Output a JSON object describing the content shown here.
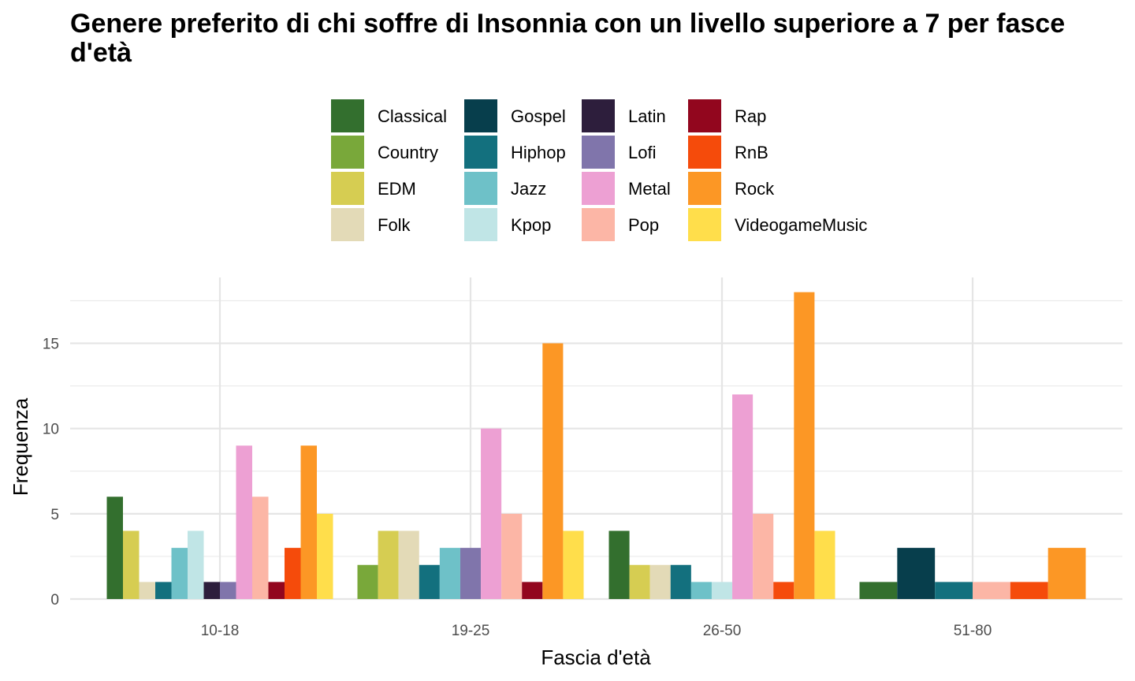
{
  "chart_data": {
    "type": "bar",
    "title": "Genere preferito di chi soffre di Insonnia con un livello superiore a 7 per fasce d'età",
    "xlabel": "Fascia d'età",
    "ylabel": "Frequenza",
    "categories": [
      "10-18",
      "19-25",
      "26-50",
      "51-80"
    ],
    "ylim": [
      0,
      19
    ],
    "yticks": [
      0,
      5,
      10,
      15
    ],
    "grid": true,
    "legend_position": "top",
    "genres": [
      {
        "name": "Classical",
        "color": "#336F2E"
      },
      {
        "name": "Country",
        "color": "#79A83A"
      },
      {
        "name": "EDM",
        "color": "#D6CD52"
      },
      {
        "name": "Folk",
        "color": "#E3DAB7"
      },
      {
        "name": "Gospel",
        "color": "#073E4C"
      },
      {
        "name": "Hiphop",
        "color": "#13707E"
      },
      {
        "name": "Jazz",
        "color": "#6EC1C8"
      },
      {
        "name": "Kpop",
        "color": "#C0E5E6"
      },
      {
        "name": "Latin",
        "color": "#2D1E3C"
      },
      {
        "name": "Lofi",
        "color": "#8075AB"
      },
      {
        "name": "Metal",
        "color": "#EDA0D3"
      },
      {
        "name": "Pop",
        "color": "#FCB6A6"
      },
      {
        "name": "Rap",
        "color": "#92061E"
      },
      {
        "name": "RnB",
        "color": "#F54B0B"
      },
      {
        "name": "Rock",
        "color": "#FC9725"
      },
      {
        "name": "VideogameMusic",
        "color": "#FFDE4B"
      }
    ],
    "groups": [
      {
        "category": "10-18",
        "bars": [
          {
            "genre": "Classical",
            "value": 6
          },
          {
            "genre": "EDM",
            "value": 4
          },
          {
            "genre": "Folk",
            "value": 1
          },
          {
            "genre": "Hiphop",
            "value": 1
          },
          {
            "genre": "Jazz",
            "value": 3
          },
          {
            "genre": "Kpop",
            "value": 4
          },
          {
            "genre": "Latin",
            "value": 1
          },
          {
            "genre": "Lofi",
            "value": 1
          },
          {
            "genre": "Metal",
            "value": 9
          },
          {
            "genre": "Pop",
            "value": 6
          },
          {
            "genre": "Rap",
            "value": 1
          },
          {
            "genre": "RnB",
            "value": 3
          },
          {
            "genre": "Rock",
            "value": 9
          },
          {
            "genre": "VideogameMusic",
            "value": 5
          }
        ]
      },
      {
        "category": "19-25",
        "bars": [
          {
            "genre": "Country",
            "value": 2
          },
          {
            "genre": "EDM",
            "value": 4
          },
          {
            "genre": "Folk",
            "value": 4
          },
          {
            "genre": "Hiphop",
            "value": 2
          },
          {
            "genre": "Jazz",
            "value": 3
          },
          {
            "genre": "Lofi",
            "value": 3
          },
          {
            "genre": "Metal",
            "value": 10
          },
          {
            "genre": "Pop",
            "value": 5
          },
          {
            "genre": "Rap",
            "value": 1
          },
          {
            "genre": "Rock",
            "value": 15
          },
          {
            "genre": "VideogameMusic",
            "value": 4
          }
        ]
      },
      {
        "category": "26-50",
        "bars": [
          {
            "genre": "Classical",
            "value": 4
          },
          {
            "genre": "EDM",
            "value": 2
          },
          {
            "genre": "Folk",
            "value": 2
          },
          {
            "genre": "Hiphop",
            "value": 2
          },
          {
            "genre": "Jazz",
            "value": 1
          },
          {
            "genre": "Kpop",
            "value": 1
          },
          {
            "genre": "Metal",
            "value": 12
          },
          {
            "genre": "Pop",
            "value": 5
          },
          {
            "genre": "RnB",
            "value": 1
          },
          {
            "genre": "Rock",
            "value": 18
          },
          {
            "genre": "VideogameMusic",
            "value": 4
          }
        ]
      },
      {
        "category": "51-80",
        "bars": [
          {
            "genre": "Classical",
            "value": 1
          },
          {
            "genre": "Gospel",
            "value": 3
          },
          {
            "genre": "Hiphop",
            "value": 1
          },
          {
            "genre": "Pop",
            "value": 1
          },
          {
            "genre": "RnB",
            "value": 1
          },
          {
            "genre": "Rock",
            "value": 3
          }
        ]
      }
    ]
  }
}
